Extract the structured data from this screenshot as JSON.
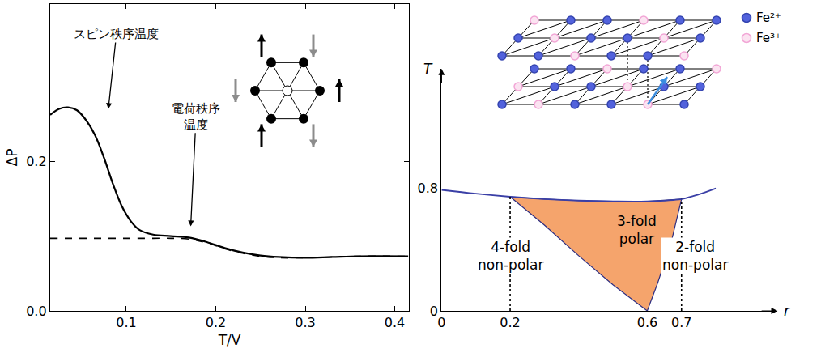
{
  "chart_data": [
    {
      "type": "line",
      "xlabel": "T/V",
      "ylabel": "ΔP",
      "xlim": [
        0.015,
        0.416
      ],
      "ylim": [
        0,
        0.41
      ],
      "xticks": [
        0.1,
        0.2,
        0.3,
        0.4
      ],
      "yticks": [
        {
          "value": 0,
          "label": "0.0"
        },
        0.2
      ],
      "series": [
        {
          "color": "#000000",
          "line_style": "solid",
          "x": [
            0.015,
            0.025,
            0.035,
            0.045,
            0.055,
            0.065,
            0.075,
            0.085,
            0.095,
            0.105,
            0.115,
            0.13,
            0.15,
            0.17,
            0.19,
            0.21,
            0.23,
            0.25,
            0.27,
            0.3,
            0.33,
            0.36,
            0.415
          ],
          "values": [
            0.262,
            0.27,
            0.272,
            0.268,
            0.255,
            0.235,
            0.205,
            0.17,
            0.14,
            0.12,
            0.108,
            0.102,
            0.1,
            0.098,
            0.092,
            0.084,
            0.078,
            0.074,
            0.072,
            0.071,
            0.072,
            0.073,
            0.073
          ]
        },
        {
          "color": "#000000",
          "line_style": "dashed",
          "x": [
            0.015,
            0.025,
            0.035,
            0.045,
            0.055,
            0.065,
            0.075,
            0.085,
            0.095,
            0.105,
            0.115,
            0.13,
            0.15,
            0.17,
            0.19,
            0.21,
            0.23,
            0.25,
            0.27,
            0.3,
            0.33,
            0.36,
            0.415
          ],
          "values": [
            0.097,
            0.097,
            0.097,
            0.097,
            0.097,
            0.097,
            0.097,
            0.097,
            0.097,
            0.097,
            0.097,
            0.097,
            0.097,
            0.096,
            0.091,
            0.083,
            0.077,
            0.073,
            0.071,
            0.071,
            0.072,
            0.073,
            0.073
          ]
        }
      ],
      "annotations": [
        {
          "text": [
            "スピン秩序温度"
          ],
          "x": 0.089,
          "y": 0.37,
          "arrow_x": 0.08,
          "arrow_y": 0.27
        },
        {
          "text": [
            "電荷秩序",
            "温度"
          ],
          "x": 0.178,
          "y": 0.26,
          "arrow_x": 0.172,
          "arrow_y": 0.113
        }
      ]
    },
    {
      "type": "area",
      "xlabel": "r",
      "ylabel": "T",
      "xlim": [
        0,
        0.98
      ],
      "ylim": [
        0,
        1.58
      ],
      "xticks": [
        0,
        0.2,
        0.6,
        0.7
      ],
      "yticks": [
        0,
        0.8
      ],
      "series": [
        {
          "type": "area",
          "color": "#f5a46c",
          "x": [
            0.2,
            0.3,
            0.4,
            0.5,
            0.6,
            0.7,
            0.67,
            0.63,
            0.6,
            0.5,
            0.4,
            0.3,
            0.2
          ],
          "values": [
            0.745,
            0.73,
            0.72,
            0.715,
            0.715,
            0.73,
            0.45,
            0.18,
            0,
            0.17,
            0.36,
            0.56,
            0.745
          ]
        },
        {
          "type": "line",
          "color": "#3a3fa6",
          "line_style": "solid",
          "x": [
            0,
            0.1,
            0.2,
            0.3,
            0.4,
            0.5,
            0.6,
            0.7,
            0.75,
            0.8
          ],
          "values": [
            0.79,
            0.765,
            0.745,
            0.73,
            0.72,
            0.715,
            0.715,
            0.73,
            0.76,
            0.8
          ]
        },
        {
          "type": "line",
          "color": "#000000",
          "line_style": "dotted",
          "x": [
            0.2,
            0.2
          ],
          "values": [
            0,
            0.745
          ]
        },
        {
          "type": "line",
          "color": "#000000",
          "line_style": "dotted",
          "x": [
            0.7,
            0.7
          ],
          "values": [
            0,
            0.73
          ]
        }
      ],
      "annotations": [
        {
          "text": [
            "3-fold",
            "polar"
          ],
          "x": 0.57,
          "y": 0.53
        },
        {
          "text": [
            "4-fold",
            "non-polar"
          ],
          "x": 0.2,
          "y": 0.36
        },
        {
          "text": [
            "2-fold",
            "non-polar"
          ],
          "x": 0.74,
          "y": 0.36
        }
      ],
      "key_labels": [
        "Fe²⁺",
        "Fe³⁺"
      ]
    }
  ]
}
